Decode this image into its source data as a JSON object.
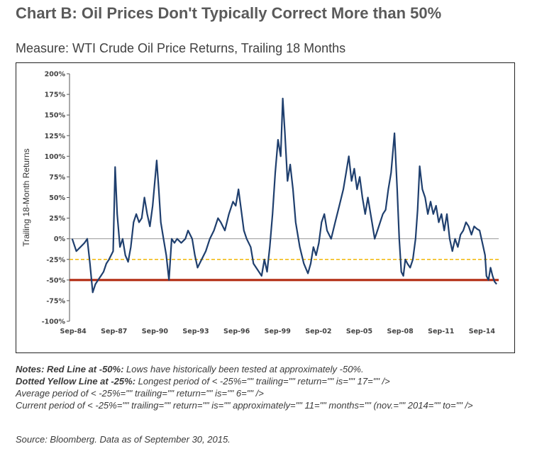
{
  "title": "Chart B: Oil Prices Don't Typically Correct More than 50%",
  "subtitle": "Measure: WTI Crude Oil Price Returns, Trailing 18 Months",
  "notes": {
    "line1_bold": "Notes: Red Line at -50%:",
    "line1_text": " Lows have historically been tested at approximately -50%.",
    "line2_bold": "Dotted Yellow Line at -25%:",
    "line2_text": " Longest period of < -25%=\"\" trailing=\"\" return=\"\" is=\"\" 17=\"\" />",
    "line3": "Average period of < -25%=\"\" trailing=\"\" return=\"\" is=\"\" 6=\"\" />",
    "line4": "Current period of < -25%=\"\" trailing=\"\" return=\"\" is=\"\" approximately=\"\" 11=\"\" months=\"\" (nov.=\"\" 2014=\"\" to=\"\" />",
    "source": "Source: Bloomberg. Data as of September 30, 2015."
  },
  "chart_data": {
    "type": "line",
    "title": "",
    "ylabel": "Trailing 18-Month Returns",
    "xlabel": "",
    "ylim": [
      -100,
      200
    ],
    "y_ticks": [
      "200%",
      "175%",
      "150%",
      "125%",
      "100%",
      "75%",
      "50%",
      "25%",
      "0%",
      "-25%",
      "-50%",
      "-75%",
      "-100%"
    ],
    "x_tick_labels": [
      "Sep-84",
      "Sep-87",
      "Sep-90",
      "Sep-93",
      "Sep-96",
      "Sep-99",
      "Sep-02",
      "Sep-05",
      "Sep-08",
      "Sep-11",
      "Sep-14"
    ],
    "x_tick_years": [
      1984.67,
      1987.67,
      1990.67,
      1993.67,
      1996.67,
      1999.67,
      2002.67,
      2005.67,
      2008.67,
      2011.67,
      2014.67
    ],
    "grid": false,
    "reference_lines": [
      {
        "value": 0,
        "color": "#9a9a9a",
        "style": "solid"
      },
      {
        "value": -25,
        "color": "#f2b705",
        "style": "dashed"
      },
      {
        "value": -50,
        "color": "#b22b12",
        "style": "solid"
      }
    ],
    "series": [
      {
        "color": "#1f3f6e",
        "points": [
          [
            1984.6,
            0
          ],
          [
            1984.9,
            -15
          ],
          [
            1985.2,
            -10
          ],
          [
            1985.5,
            -5
          ],
          [
            1985.7,
            0
          ],
          [
            1985.9,
            -30
          ],
          [
            1986.1,
            -65
          ],
          [
            1986.3,
            -55
          ],
          [
            1986.5,
            -50
          ],
          [
            1986.7,
            -45
          ],
          [
            1986.9,
            -40
          ],
          [
            1987.1,
            -30
          ],
          [
            1987.3,
            -25
          ],
          [
            1987.6,
            -15
          ],
          [
            1987.75,
            87
          ],
          [
            1987.9,
            30
          ],
          [
            1988.1,
            -10
          ],
          [
            1988.3,
            0
          ],
          [
            1988.5,
            -20
          ],
          [
            1988.7,
            -28
          ],
          [
            1988.9,
            -10
          ],
          [
            1989.1,
            20
          ],
          [
            1989.3,
            30
          ],
          [
            1989.5,
            20
          ],
          [
            1989.7,
            25
          ],
          [
            1989.9,
            50
          ],
          [
            1990.1,
            30
          ],
          [
            1990.3,
            15
          ],
          [
            1990.5,
            40
          ],
          [
            1990.8,
            95
          ],
          [
            1990.95,
            60
          ],
          [
            1991.1,
            20
          ],
          [
            1991.3,
            0
          ],
          [
            1991.5,
            -20
          ],
          [
            1991.7,
            -50
          ],
          [
            1991.9,
            0
          ],
          [
            1992.1,
            -5
          ],
          [
            1992.3,
            0
          ],
          [
            1992.6,
            -5
          ],
          [
            1992.9,
            0
          ],
          [
            1993.1,
            10
          ],
          [
            1993.4,
            0
          ],
          [
            1993.6,
            -20
          ],
          [
            1993.8,
            -35
          ],
          [
            1994.1,
            -25
          ],
          [
            1994.4,
            -15
          ],
          [
            1994.7,
            0
          ],
          [
            1995.0,
            10
          ],
          [
            1995.3,
            25
          ],
          [
            1995.5,
            20
          ],
          [
            1995.8,
            10
          ],
          [
            1996.1,
            30
          ],
          [
            1996.4,
            45
          ],
          [
            1996.6,
            40
          ],
          [
            1996.8,
            60
          ],
          [
            1997.0,
            35
          ],
          [
            1997.2,
            10
          ],
          [
            1997.4,
            0
          ],
          [
            1997.7,
            -10
          ],
          [
            1997.9,
            -30
          ],
          [
            1998.1,
            -35
          ],
          [
            1998.3,
            -40
          ],
          [
            1998.5,
            -45
          ],
          [
            1998.7,
            -25
          ],
          [
            1998.9,
            -40
          ],
          [
            1999.1,
            -10
          ],
          [
            1999.3,
            30
          ],
          [
            1999.5,
            80
          ],
          [
            1999.7,
            120
          ],
          [
            1999.9,
            100
          ],
          [
            2000.05,
            170
          ],
          [
            2000.2,
            130
          ],
          [
            2000.4,
            70
          ],
          [
            2000.6,
            90
          ],
          [
            2000.8,
            60
          ],
          [
            2001.0,
            20
          ],
          [
            2001.3,
            -10
          ],
          [
            2001.6,
            -30
          ],
          [
            2001.9,
            -42
          ],
          [
            2002.1,
            -30
          ],
          [
            2002.3,
            -10
          ],
          [
            2002.5,
            -20
          ],
          [
            2002.7,
            -5
          ],
          [
            2002.9,
            20
          ],
          [
            2003.1,
            30
          ],
          [
            2003.3,
            10
          ],
          [
            2003.6,
            0
          ],
          [
            2003.9,
            20
          ],
          [
            2004.2,
            40
          ],
          [
            2004.5,
            60
          ],
          [
            2004.7,
            80
          ],
          [
            2004.9,
            100
          ],
          [
            2005.1,
            70
          ],
          [
            2005.3,
            85
          ],
          [
            2005.5,
            60
          ],
          [
            2005.7,
            75
          ],
          [
            2005.9,
            50
          ],
          [
            2006.1,
            30
          ],
          [
            2006.3,
            50
          ],
          [
            2006.6,
            20
          ],
          [
            2006.8,
            0
          ],
          [
            2007.0,
            10
          ],
          [
            2007.2,
            20
          ],
          [
            2007.4,
            30
          ],
          [
            2007.6,
            35
          ],
          [
            2007.8,
            60
          ],
          [
            2008.0,
            80
          ],
          [
            2008.25,
            128
          ],
          [
            2008.45,
            60
          ],
          [
            2008.6,
            0
          ],
          [
            2008.75,
            -40
          ],
          [
            2008.9,
            -45
          ],
          [
            2009.05,
            -25
          ],
          [
            2009.2,
            -30
          ],
          [
            2009.4,
            -35
          ],
          [
            2009.6,
            -25
          ],
          [
            2009.8,
            0
          ],
          [
            2009.95,
            35
          ],
          [
            2010.1,
            88
          ],
          [
            2010.3,
            60
          ],
          [
            2010.5,
            50
          ],
          [
            2010.7,
            30
          ],
          [
            2010.9,
            45
          ],
          [
            2011.1,
            30
          ],
          [
            2011.3,
            40
          ],
          [
            2011.5,
            20
          ],
          [
            2011.7,
            30
          ],
          [
            2011.9,
            10
          ],
          [
            2012.1,
            30
          ],
          [
            2012.3,
            0
          ],
          [
            2012.5,
            -15
          ],
          [
            2012.7,
            0
          ],
          [
            2012.9,
            -10
          ],
          [
            2013.1,
            5
          ],
          [
            2013.3,
            10
          ],
          [
            2013.5,
            20
          ],
          [
            2013.7,
            15
          ],
          [
            2013.9,
            5
          ],
          [
            2014.1,
            15
          ],
          [
            2014.3,
            12
          ],
          [
            2014.5,
            10
          ],
          [
            2014.7,
            -5
          ],
          [
            2014.9,
            -20
          ],
          [
            2015.0,
            -45
          ],
          [
            2015.15,
            -50
          ],
          [
            2015.3,
            -35
          ],
          [
            2015.45,
            -45
          ],
          [
            2015.6,
            -52
          ],
          [
            2015.75,
            -55
          ]
        ]
      }
    ]
  }
}
